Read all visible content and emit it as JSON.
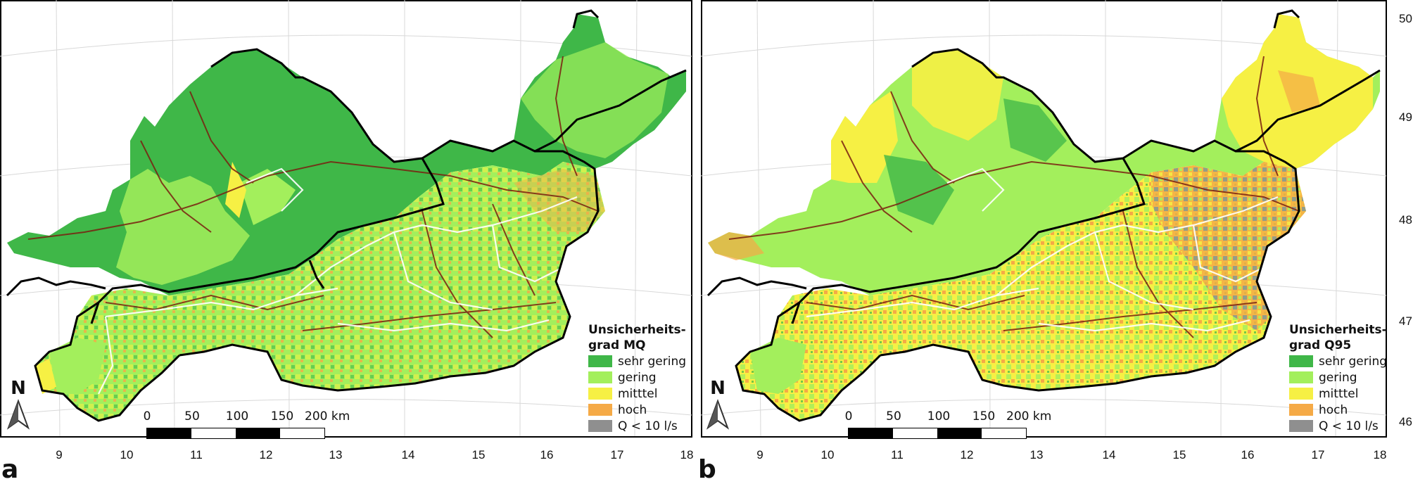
{
  "panels": [
    {
      "letter": "a",
      "legend": {
        "title_line1": "Unsicherheits-",
        "title_line2": "grad MQ",
        "items": [
          {
            "label": "sehr gering",
            "color": "#3fb748"
          },
          {
            "label": "gering",
            "color": "#a3ef5c"
          },
          {
            "label": "mitttel",
            "color": "#f6f044"
          },
          {
            "label": "hoch",
            "color": "#f5aa46"
          },
          {
            "label": "Q < 10 l/s",
            "color": "#8f8f8f"
          }
        ]
      },
      "x_ticks": [
        "9",
        "10",
        "11",
        "12",
        "13",
        "14",
        "15",
        "16",
        "17",
        "18"
      ]
    },
    {
      "letter": "b",
      "legend": {
        "title_line1": "Unsicherheits-",
        "title_line2": "grad Q95",
        "items": [
          {
            "label": "sehr gering",
            "color": "#3fb748"
          },
          {
            "label": "gering",
            "color": "#a3ef5c"
          },
          {
            "label": "mitttel",
            "color": "#f6f044"
          },
          {
            "label": "hoch",
            "color": "#f5aa46"
          },
          {
            "label": "Q < 10 l/s",
            "color": "#8f8f8f"
          }
        ]
      },
      "x_ticks": [
        "9",
        "10",
        "11",
        "12",
        "13",
        "14",
        "15",
        "16",
        "17",
        "18"
      ],
      "y_ticks": [
        "50",
        "49",
        "48",
        "47",
        "46"
      ]
    }
  ],
  "north_label": "N",
  "scalebar": {
    "labels": [
      "0",
      "50",
      "100",
      "150",
      "200 km"
    ]
  },
  "colors": {
    "border": "#000000",
    "river": "#7a1f10",
    "basin_boundary": "#ffffff",
    "graticule": "#d8d8d8"
  }
}
